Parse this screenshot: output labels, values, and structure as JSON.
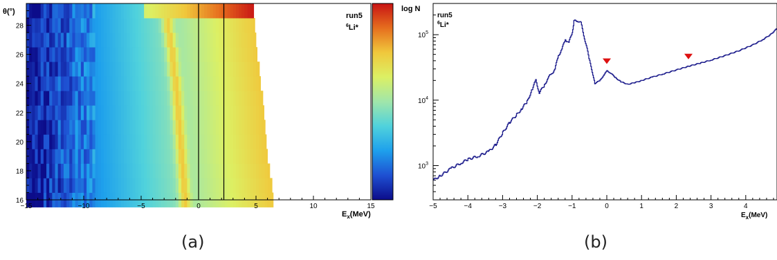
{
  "panels": [
    {
      "caption": "(a)",
      "run_label": "run5",
      "nucleus_mass": "6",
      "nucleus_label": "Li*"
    },
    {
      "caption": "(b)",
      "run_label": "run5",
      "nucleus_mass": "6",
      "nucleus_label": "Li*"
    }
  ],
  "chart_data": [
    {
      "type": "heatmap",
      "xlabel": "E",
      "xlabel_sub": "x",
      "xlabel_unit": "(MeV)",
      "ylabel": "θ(°)",
      "xlim": [
        -15,
        15
      ],
      "ylim": [
        16,
        29.5
      ],
      "xticks": [
        -15,
        -10,
        -5,
        0,
        5,
        10,
        15
      ],
      "yticks": [
        16,
        18,
        20,
        22,
        24,
        26,
        28
      ],
      "vertical_lines_x": [
        0,
        2.2
      ],
      "theta_bins": [
        16.5,
        17.5,
        18.5,
        19.5,
        20.5,
        21.5,
        22.5,
        23.5,
        24.5,
        25.5,
        26.5,
        27.5,
        28.5,
        29.5
      ],
      "emax_per_bin": [
        6.5,
        6.4,
        6.2,
        6.0,
        5.9,
        5.8,
        5.7,
        5.6,
        5.4,
        5.3,
        5.1,
        5.0,
        4.9,
        4.8
      ],
      "ridge_ex_per_bin": [
        -1.3,
        -1.4,
        -1.5,
        -1.6,
        -1.7,
        -1.8,
        -1.9,
        -2.0,
        -2.1,
        -2.3,
        -2.4,
        -2.6,
        -2.8,
        -3.0
      ],
      "colormap": [
        "#0c0c8a",
        "#1e50d2",
        "#1ea0ec",
        "#50d2dc",
        "#a0e6aa",
        "#dcf064",
        "#f0c83c",
        "#e66e1e",
        "#c81414"
      ]
    },
    {
      "type": "line",
      "ylabel": "log N",
      "xlabel": "E",
      "xlabel_sub": "x",
      "xlabel_unit": "(MeV)",
      "xlim": [
        -5,
        4.9
      ],
      "ylim": [
        300,
        300000
      ],
      "yscale": "log",
      "xticks": [
        -5,
        -4,
        -3,
        -2,
        -1,
        0,
        1,
        2,
        3,
        4
      ],
      "ytick_base": "10",
      "ytick_exponents": [
        "3",
        "4",
        "5"
      ],
      "line_color": "#1c1c8c",
      "marker_color": "#dd1111",
      "markers_x": [
        0.0,
        2.35
      ],
      "series": [
        {
          "x": [
            -5.0,
            -4.8,
            -4.5,
            -4.2,
            -4.0,
            -3.7,
            -3.4,
            -3.2,
            -3.0,
            -2.8,
            -2.6,
            -2.45,
            -2.3,
            -2.15,
            -2.05,
            -1.95,
            -1.8,
            -1.7,
            -1.6,
            -1.5,
            -1.4,
            -1.3,
            -1.2,
            -1.1,
            -1.0,
            -0.95,
            -0.85,
            -0.75,
            -0.65,
            -0.5,
            -0.35,
            -0.2,
            -0.1,
            0.0,
            0.1,
            0.25,
            0.4,
            0.6,
            0.8,
            1.0,
            1.3,
            1.6,
            2.0,
            2.35,
            2.7,
            3.0,
            3.4,
            3.8,
            4.2,
            4.5,
            4.7,
            4.9
          ],
          "y": [
            600,
            700,
            900,
            1100,
            1250,
            1400,
            1650,
            2100,
            3200,
            4600,
            6000,
            7500,
            9500,
            15000,
            20000,
            13000,
            17000,
            22000,
            25000,
            30000,
            48000,
            60000,
            85000,
            75000,
            110000,
            160000,
            165000,
            150000,
            90000,
            40000,
            18000,
            20000,
            24000,
            28000,
            26000,
            22000,
            19000,
            17500,
            18500,
            20000,
            22500,
            25000,
            29000,
            33000,
            37000,
            41000,
            48000,
            57000,
            70000,
            85000,
            100000,
            125000
          ]
        }
      ]
    }
  ]
}
